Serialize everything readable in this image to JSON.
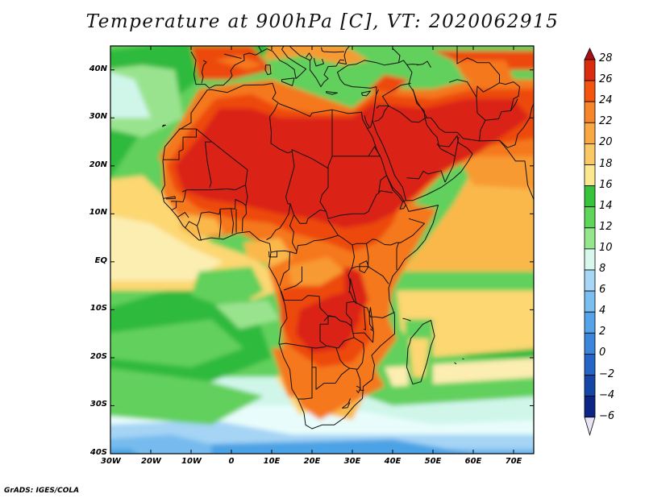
{
  "title": "Temperature at 900hPa [C], VT: 2020062915",
  "credit": "GrADS: IGES/COLA",
  "map": {
    "variable": "Temperature at 900hPa",
    "units": "C",
    "valid_time": "2020062915",
    "lon_range": [
      -30,
      75
    ],
    "lat_range": [
      -40,
      45
    ],
    "lat_ticks": [
      {
        "value": 40,
        "label": "40N"
      },
      {
        "value": 30,
        "label": "30N"
      },
      {
        "value": 20,
        "label": "20N"
      },
      {
        "value": 10,
        "label": "10N"
      },
      {
        "value": 0,
        "label": "EQ"
      },
      {
        "value": -10,
        "label": "10S"
      },
      {
        "value": -20,
        "label": "20S"
      },
      {
        "value": -30,
        "label": "30S"
      },
      {
        "value": -40,
        "label": "40S"
      }
    ],
    "lon_ticks": [
      {
        "value": -30,
        "label": "30W"
      },
      {
        "value": -20,
        "label": "20W"
      },
      {
        "value": -10,
        "label": "10W"
      },
      {
        "value": 0,
        "label": "0"
      },
      {
        "value": 10,
        "label": "10E"
      },
      {
        "value": 20,
        "label": "20E"
      },
      {
        "value": 30,
        "label": "30E"
      },
      {
        "value": 40,
        "label": "40E"
      },
      {
        "value": 50,
        "label": "50E"
      },
      {
        "value": 60,
        "label": "60E"
      },
      {
        "value": 70,
        "label": "70E"
      }
    ]
  },
  "colorbar": {
    "levels": [
      {
        "label": "28",
        "value": 28
      },
      {
        "label": "26",
        "value": 26
      },
      {
        "label": "24",
        "value": 24
      },
      {
        "label": "22",
        "value": 22
      },
      {
        "label": "20",
        "value": 20
      },
      {
        "label": "18",
        "value": 18
      },
      {
        "label": "16",
        "value": 16
      },
      {
        "label": "14",
        "value": 14
      },
      {
        "label": "12",
        "value": 12
      },
      {
        "label": "10",
        "value": 10
      },
      {
        "label": "8",
        "value": 8
      },
      {
        "label": "6",
        "value": 6
      },
      {
        "label": "4",
        "value": 4
      },
      {
        "label": "2",
        "value": 2
      },
      {
        "label": "0",
        "value": 0
      },
      {
        "label": "−2",
        "value": -2
      },
      {
        "label": "−4",
        "value": -4
      },
      {
        "label": "−6",
        "value": -6
      }
    ],
    "colors": [
      "#a50f15",
      "#db2c0d",
      "#f5540f",
      "#f7862b",
      "#f9a844",
      "#fbc866",
      "#fce88e",
      "#37c43a",
      "#5ed65a",
      "#96e68c",
      "#d8f8ee",
      "#a8d6f6",
      "#7bbff0",
      "#55a3e8",
      "#3a86dc",
      "#2565c8",
      "#1645a8",
      "#0c2485",
      "#0a156b",
      "#e8e4f6"
    ]
  },
  "palette": {
    "hot": "#da2312",
    "hot2": "#ed4a10",
    "orange": "#f5781d",
    "orange2": "#f89a30",
    "gold": "#fab84c",
    "yellow": "#fcd772",
    "pale": "#fcedb0",
    "green_dark": "#2fba3c",
    "green": "#62d05c",
    "green_light": "#9ae38e",
    "mint": "#d0f6ea",
    "cyan": "#e8fdfb",
    "blue_light": "#a5d4f5",
    "blue": "#77bbee",
    "blue_mid": "#4ba2e4",
    "border": "#111111"
  }
}
